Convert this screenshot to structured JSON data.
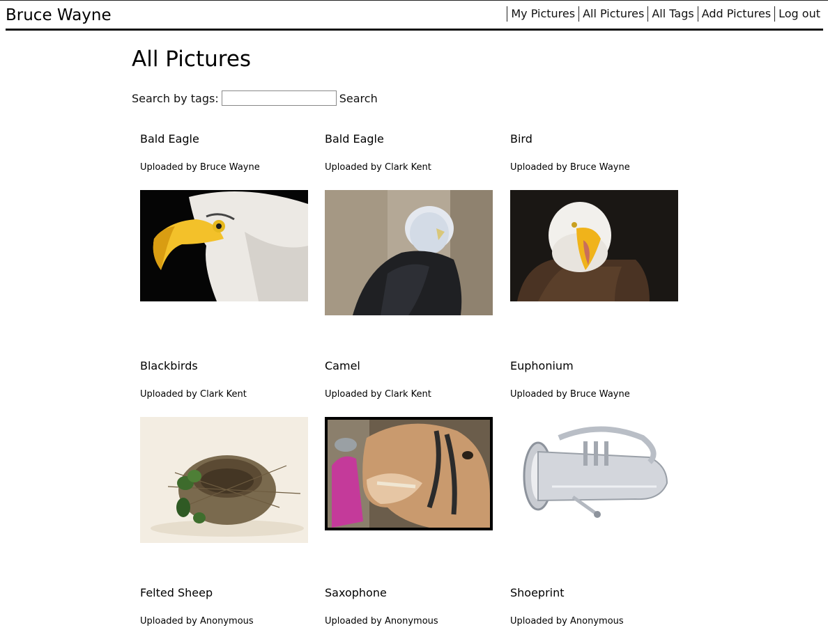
{
  "header": {
    "site_title": "Bruce Wayne",
    "nav": [
      "My Pictures",
      "All Pictures",
      "All Tags",
      "Add Pictures",
      "Log out"
    ]
  },
  "main": {
    "title": "All Pictures",
    "search": {
      "label": "Search by tags:",
      "value": "",
      "placeholder": "",
      "button": "Search"
    }
  },
  "pictures": [
    {
      "name": "Bald Eagle",
      "uploader": "Uploaded by Bruce Wayne",
      "image": "eagle-closeup-photo"
    },
    {
      "name": "Bald Eagle",
      "uploader": "Uploaded by Clark Kent",
      "image": "eagle-perched-photo"
    },
    {
      "name": "Bird",
      "uploader": "Uploaded by Bruce Wayne",
      "image": "eagle-screaming-photo"
    },
    {
      "name": "Blackbirds",
      "uploader": "Uploaded by Clark Kent",
      "image": "bird-nest-photo"
    },
    {
      "name": "Camel",
      "uploader": "Uploaded by Clark Kent",
      "image": "camel-photo"
    },
    {
      "name": "Euphonium",
      "uploader": "Uploaded by Bruce Wayne",
      "image": "euphonium-photo"
    },
    {
      "name": "Felted Sheep",
      "uploader": "Uploaded by Anonymous",
      "image": ""
    },
    {
      "name": "Saxophone",
      "uploader": "Uploaded by Anonymous",
      "image": ""
    },
    {
      "name": "Shoeprint",
      "uploader": "Uploaded by Anonymous",
      "image": ""
    }
  ]
}
